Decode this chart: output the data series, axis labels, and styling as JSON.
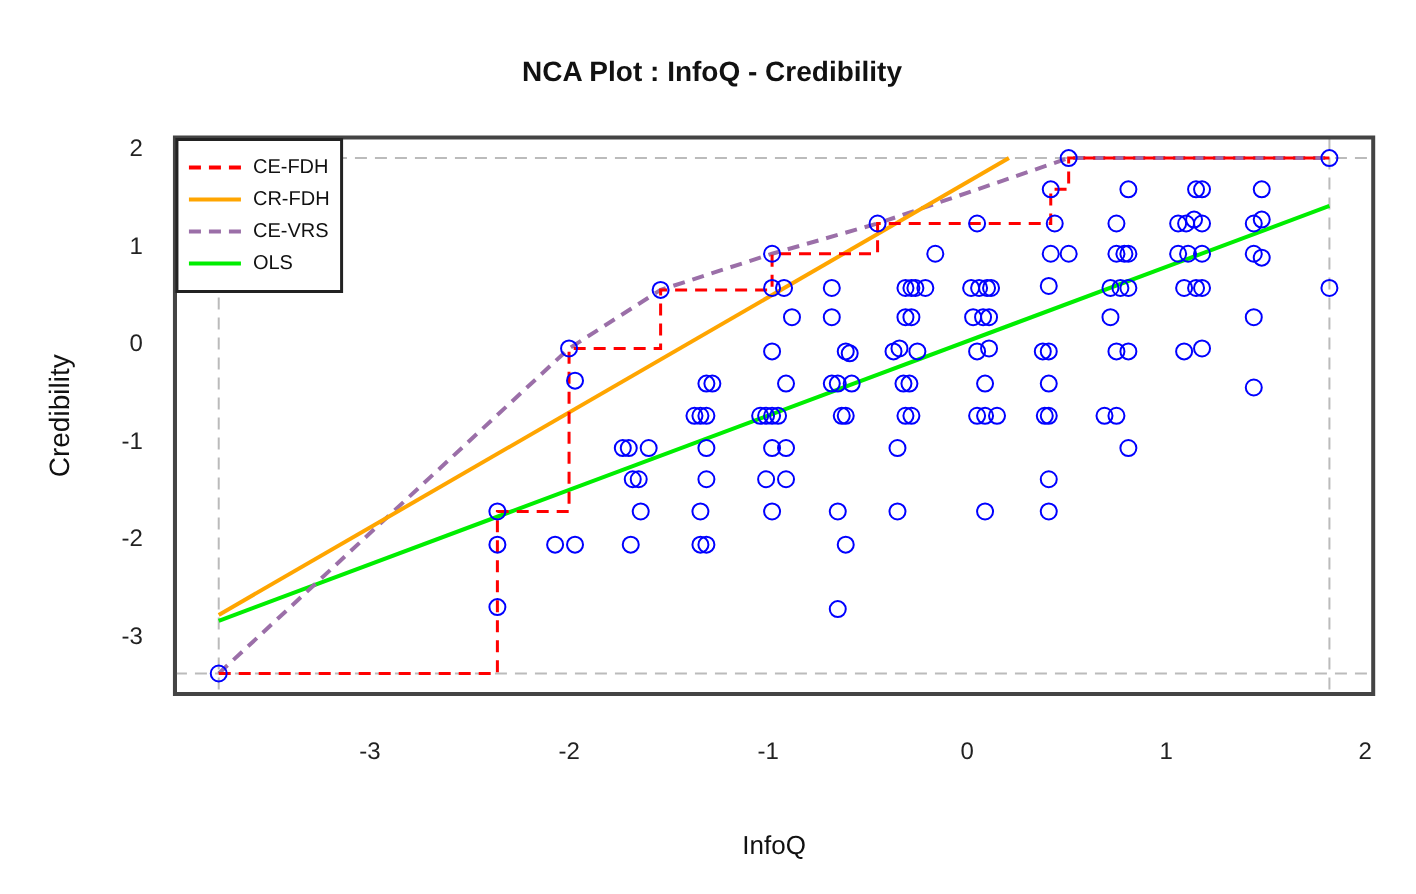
{
  "chart_data": {
    "type": "scatter",
    "title": "NCA Plot : InfoQ - Credibility",
    "xlabel": "InfoQ",
    "ylabel": "Credibility",
    "xlim": [
      -3.98,
      2.04
    ],
    "ylim": [
      -3.58,
      2.12
    ],
    "xticks": [
      -3,
      -2,
      -1,
      0,
      1,
      2
    ],
    "yticks": [
      -3,
      -2,
      -1,
      0,
      1,
      2
    ],
    "grid": false,
    "legend": "top left",
    "ref_lines": [
      {
        "axis": "x",
        "value": -3.76,
        "color": "#bbbbbb",
        "line_style": "dashed"
      },
      {
        "axis": "x",
        "value": 1.82,
        "color": "#bbbbbb",
        "line_style": "dashed"
      },
      {
        "axis": "y",
        "value": -3.37,
        "color": "#bbbbbb",
        "line_style": "dashed"
      },
      {
        "axis": "y",
        "value": 1.91,
        "color": "#bbbbbb",
        "line_style": "dashed"
      }
    ],
    "series": [
      {
        "type": "scatter",
        "color": "#0000ff",
        "marker": "circle",
        "x": [
          -3.76,
          -2.36,
          -2.36,
          -2.36,
          -2.0,
          -1.97,
          -2.07,
          -1.97,
          -1.69,
          -1.73,
          -1.7,
          -1.6,
          -1.68,
          -1.65,
          -1.64,
          -1.54,
          -1.37,
          -1.34,
          -1.31,
          -1.31,
          -1.28,
          -1.31,
          -1.31,
          -1.34,
          -1.34,
          -1.31,
          -0.98,
          -0.98,
          -0.92,
          -0.88,
          -0.98,
          -0.91,
          -1.04,
          -1.01,
          -0.98,
          -0.95,
          -0.98,
          -0.91,
          -1.01,
          -0.91,
          -0.98,
          -0.68,
          -0.68,
          -0.61,
          -0.59,
          -0.68,
          -0.65,
          -0.58,
          -0.63,
          -0.61,
          -0.65,
          -0.61,
          -0.65,
          -0.45,
          -0.16,
          -0.31,
          -0.28,
          -0.26,
          -0.21,
          -0.31,
          -0.28,
          -0.37,
          -0.34,
          -0.25,
          -0.32,
          -0.29,
          -0.31,
          -0.28,
          -0.35,
          -0.35,
          0.05,
          0.02,
          0.06,
          0.1,
          0.12,
          0.03,
          0.08,
          0.11,
          0.05,
          0.11,
          0.09,
          0.05,
          0.09,
          0.15,
          0.09,
          0.51,
          0.42,
          0.44,
          0.42,
          0.51,
          0.41,
          0.38,
          0.41,
          0.41,
          0.39,
          0.41,
          0.41,
          0.41,
          0.81,
          0.75,
          0.75,
          0.79,
          0.81,
          0.72,
          0.77,
          0.81,
          0.72,
          0.75,
          0.81,
          0.69,
          0.75,
          0.81,
          1.15,
          1.18,
          1.06,
          1.1,
          1.14,
          1.18,
          1.06,
          1.11,
          1.18,
          1.09,
          1.15,
          1.18,
          1.09,
          1.18,
          1.48,
          1.44,
          1.48,
          1.44,
          1.48,
          1.44,
          1.44,
          1.82,
          1.82
        ],
        "values": [
          -3.37,
          -1.71,
          -2.05,
          -2.69,
          -0.04,
          -0.37,
          -2.05,
          -2.05,
          -2.05,
          -1.06,
          -1.06,
          -1.06,
          -1.38,
          -1.38,
          -1.71,
          0.56,
          -0.73,
          -0.73,
          -0.73,
          -0.4,
          -0.4,
          -1.06,
          -1.38,
          -1.71,
          -2.05,
          -2.05,
          0.93,
          0.58,
          0.58,
          0.28,
          -0.07,
          -0.4,
          -0.73,
          -0.73,
          -0.73,
          -0.73,
          -1.06,
          -1.06,
          -1.38,
          -1.38,
          -1.71,
          0.58,
          0.28,
          -0.07,
          -0.09,
          -0.4,
          -0.4,
          -0.4,
          -0.73,
          -0.73,
          -1.71,
          -2.05,
          -2.71,
          1.24,
          0.93,
          0.58,
          0.58,
          0.58,
          0.58,
          0.28,
          0.28,
          -0.07,
          -0.04,
          -0.07,
          -0.4,
          -0.4,
          -0.73,
          -0.73,
          -1.06,
          -1.71,
          1.24,
          0.58,
          0.58,
          0.58,
          0.58,
          0.28,
          0.28,
          0.28,
          -0.07,
          -0.04,
          -0.4,
          -0.73,
          -0.73,
          -0.73,
          -1.71,
          1.91,
          1.59,
          1.24,
          0.93,
          0.93,
          0.6,
          -0.07,
          -0.07,
          -0.4,
          -0.73,
          -0.73,
          -1.38,
          -1.71,
          1.59,
          1.24,
          0.93,
          0.93,
          0.93,
          0.58,
          0.58,
          0.58,
          0.28,
          -0.07,
          -0.07,
          -0.73,
          -0.73,
          -1.06,
          1.59,
          1.59,
          1.24,
          1.24,
          1.28,
          1.24,
          0.93,
          0.93,
          0.93,
          0.58,
          0.58,
          0.58,
          -0.07,
          -0.04,
          1.59,
          1.24,
          1.28,
          0.93,
          0.89,
          0.28,
          -0.44,
          1.91,
          0.58
        ]
      },
      {
        "type": "step",
        "name": "CE-FDH",
        "color": "#ff0000",
        "line_style": "dashed",
        "marker": "none",
        "x": [
          -3.76,
          -2.36,
          -2.0,
          -1.54,
          -0.98,
          -0.45,
          0.42,
          0.51,
          1.82
        ],
        "values": [
          -3.37,
          -1.71,
          -0.04,
          0.56,
          0.93,
          1.24,
          1.59,
          1.91,
          1.91
        ]
      },
      {
        "type": "line",
        "name": "CR-FDH",
        "color": "#ffa500",
        "line_style": "solid",
        "marker": "none",
        "x": [
          -3.76,
          0.21
        ],
        "values": [
          -2.77,
          1.91
        ]
      },
      {
        "type": "line",
        "name": "CE-VRS",
        "color": "#9b6fa8",
        "line_style": "dashed",
        "marker": "none",
        "x": [
          -3.76,
          -2.0,
          -1.54,
          -0.98,
          -0.45,
          0.51,
          1.82
        ],
        "values": [
          -3.37,
          -0.04,
          0.56,
          0.93,
          1.24,
          1.91,
          1.91
        ]
      },
      {
        "type": "line",
        "name": "OLS",
        "color": "#00ee00",
        "line_style": "solid",
        "marker": "none",
        "x": [
          -3.76,
          1.82
        ],
        "values": [
          -2.83,
          1.42
        ]
      }
    ]
  }
}
